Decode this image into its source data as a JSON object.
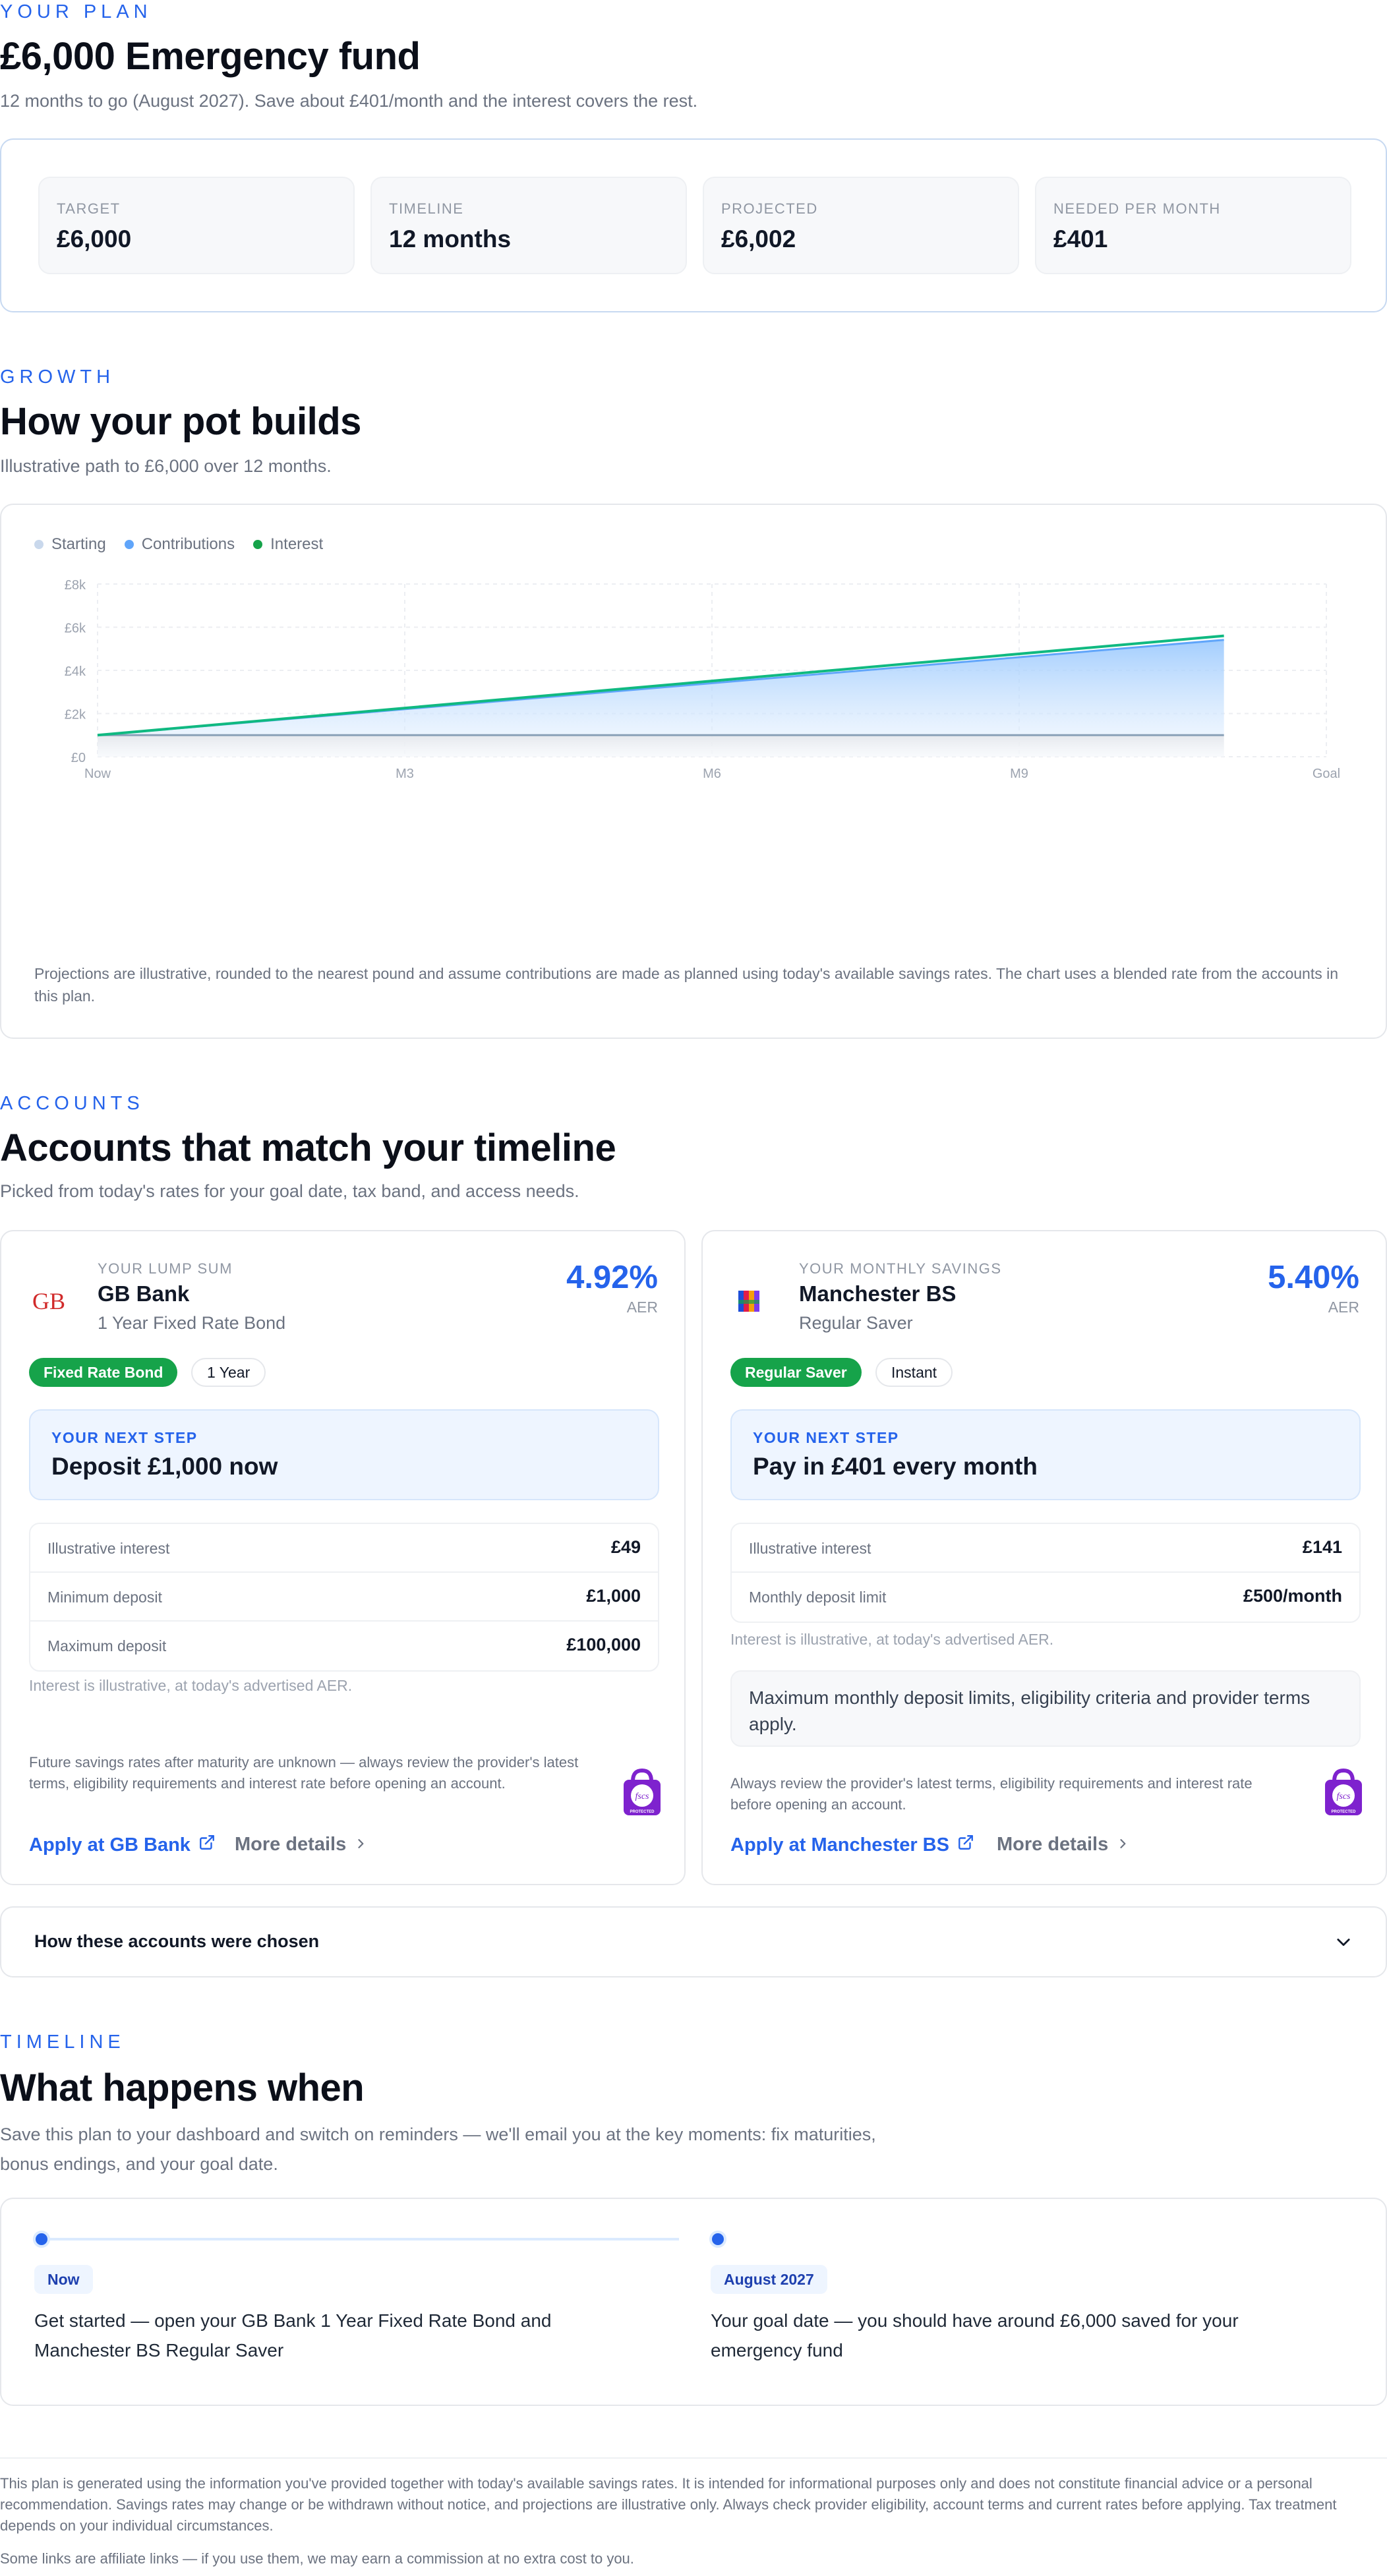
{
  "plan": {
    "eyebrow": "YOUR PLAN",
    "title": "£6,000 Emergency fund",
    "subtitle": "12 months to go (August 2027). Save about £401/month and the interest covers the rest.",
    "stats": [
      {
        "label": "TARGET",
        "value": "£6,000"
      },
      {
        "label": "TIMELINE",
        "value": "12 months"
      },
      {
        "label": "PROJECTED",
        "value": "£6,002"
      },
      {
        "label": "NEEDED PER MONTH",
        "value": "£401"
      }
    ]
  },
  "growth": {
    "eyebrow": "GROWTH",
    "title": "How your pot builds",
    "subtitle": "Illustrative path to £6,000 over 12 months.",
    "legend": [
      {
        "label": "Starting",
        "color": "#c9d8ec"
      },
      {
        "label": "Contributions",
        "color": "#60a5fa"
      },
      {
        "label": "Interest",
        "color": "#16a34a"
      }
    ],
    "note": "Projections are illustrative, rounded to the nearest pound and assume contributions are made as planned using today's available savings rates. The chart uses a blended rate from the accounts in this plan."
  },
  "chart_data": {
    "type": "area",
    "x": [
      "Now",
      "M3",
      "M6",
      "M9",
      "Goal"
    ],
    "x_index": [
      0,
      3,
      6,
      9,
      12
    ],
    "ytick_labels": [
      "£0",
      "£2k",
      "£4k",
      "£6k",
      "£8k"
    ],
    "ylim": [
      0,
      8000
    ],
    "xlim": [
      0,
      12
    ],
    "grid": true,
    "legend_position": "top-left",
    "series": [
      {
        "name": "Starting",
        "x": [
          0,
          11
        ],
        "values": [
          1000,
          1000
        ],
        "color": "#8aa1b8"
      },
      {
        "name": "Contributions",
        "x": [
          0,
          11
        ],
        "values": [
          1000,
          5411
        ],
        "color": "#60a5fa"
      },
      {
        "name": "Interest",
        "x": [
          0,
          11
        ],
        "values": [
          1000,
          5600
        ],
        "color": "#10b981"
      }
    ]
  },
  "accounts": {
    "eyebrow": "ACCOUNTS",
    "title": "Accounts that match your timeline",
    "subtitle": "Picked from today's rates for your goal date, tax band, and access needs.",
    "cards": [
      {
        "logo_text": "GB",
        "kicker": "YOUR LUMP SUM",
        "name": "GB Bank",
        "type": "1 Year Fixed Rate Bond",
        "rate": "4.92%",
        "rate_unit": "AER",
        "tags": [
          "Fixed Rate Bond",
          "1 Year"
        ],
        "next_step_label": "YOUR NEXT STEP",
        "next_step": "Deposit £1,000 now",
        "rows": [
          {
            "label": "Illustrative interest",
            "value": "£49"
          },
          {
            "label": "Minimum deposit",
            "value": "£1,000"
          },
          {
            "label": "Maximum deposit",
            "value": "£100,000"
          }
        ],
        "hint": "Interest is illustrative, at today's advertised AER.",
        "disclaimer": "Future savings rates after maturity are unknown — always review the provider's latest terms, eligibility requirements and interest rate before opening an account.",
        "apply": "Apply at GB Bank",
        "more": "More details"
      },
      {
        "logo_text": "MBS",
        "kicker": "YOUR MONTHLY SAVINGS",
        "name": "Manchester BS",
        "type": "Regular Saver",
        "rate": "5.40%",
        "rate_unit": "AER",
        "tags": [
          "Regular Saver",
          "Instant"
        ],
        "next_step_label": "YOUR NEXT STEP",
        "next_step": "Pay in £401 every month",
        "rows": [
          {
            "label": "Illustrative interest",
            "value": "£141"
          },
          {
            "label": "Monthly deposit limit",
            "value": "£500/month"
          }
        ],
        "hint": "Interest is illustrative, at today's advertised AER.",
        "box": "Maximum monthly deposit limits, eligibility criteria and provider terms apply.",
        "disclaimer": "Always review the provider's latest terms, eligibility requirements and interest rate before opening an account.",
        "apply": "Apply at Manchester BS",
        "more": "More details"
      }
    ],
    "fscs_text": "fscs",
    "fscs_sub": "PROTECTED",
    "how_chosen": "How these accounts were chosen"
  },
  "timeline": {
    "eyebrow": "TIMELINE",
    "title": "What happens when",
    "subtitle": "Save this plan to your dashboard and switch on reminders — we'll email you at the key moments: fix maturities, bonus endings, and your goal date.",
    "items": [
      {
        "badge": "Now",
        "text": "Get started — open your GB Bank 1 Year Fixed Rate Bond and Manchester BS Regular Saver"
      },
      {
        "badge": "August 2027",
        "text": "Your goal date — you should have around £6,000 saved for your emergency fund"
      }
    ]
  },
  "footer": {
    "disclaimer": "This plan is generated using the information you've provided together with today's available savings rates. It is intended for informational purposes only and does not constitute financial advice or a personal recommendation. Savings rates may change or be withdrawn without notice, and projections are illustrative only. Always check provider eligibility, account terms and current rates before applying. Tax treatment depends on your individual circumstances.",
    "affiliate": "Some links are affiliate links — if you use them, we may earn a commission at no extra cost to you."
  }
}
